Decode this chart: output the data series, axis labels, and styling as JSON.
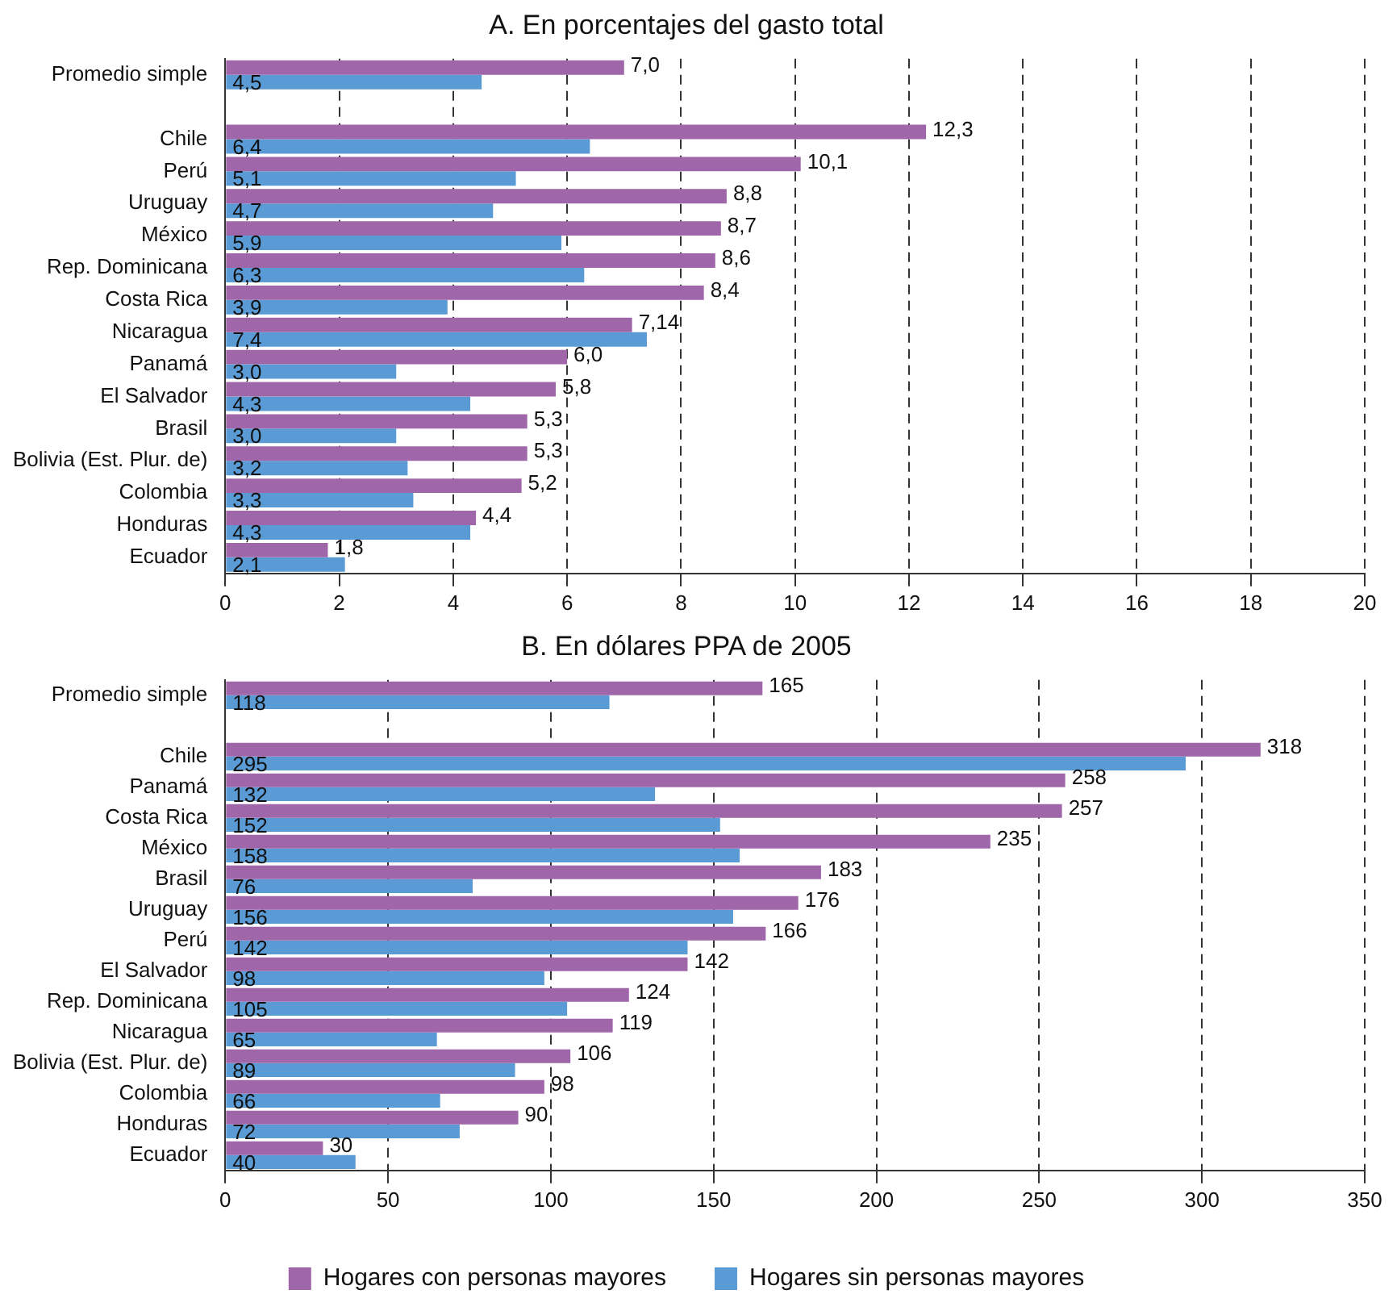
{
  "chart_data": [
    {
      "type": "bar",
      "orientation": "horizontal",
      "title": "A. En porcentajes del gasto total",
      "categories": [
        "Promedio simple",
        null,
        "Chile",
        "Perú",
        "Uruguay",
        "México",
        "Rep. Dominicana",
        "Costa Rica",
        "Nicaragua",
        "Panamá",
        "El Salvador",
        "Brasil",
        "Bolivia (Est. Plur. de)",
        "Colombia",
        "Honduras",
        "Ecuador"
      ],
      "series": [
        {
          "color": "#a066aa",
          "values": [
            7.0,
            null,
            12.3,
            10.1,
            8.8,
            8.7,
            8.6,
            8.4,
            7.14,
            6.0,
            5.8,
            5.3,
            5.3,
            5.2,
            4.4,
            1.8
          ],
          "value_labels": [
            "7,0",
            null,
            "12,3",
            "10,1",
            "8,8",
            "8,7",
            "8,6",
            "8,4",
            "7,14",
            "6,0",
            "5,8",
            "5,3",
            "5,3",
            "5,2",
            "4,4",
            "1,8"
          ]
        },
        {
          "color": "#5b9bd5",
          "values": [
            4.5,
            null,
            6.4,
            5.1,
            4.7,
            5.9,
            6.3,
            3.9,
            7.4,
            3.0,
            4.3,
            3.0,
            3.2,
            3.3,
            4.3,
            2.1
          ],
          "value_labels": [
            "4,5",
            null,
            "6,4",
            "5,1",
            "4,7",
            "5,9",
            "6,3",
            "3,9",
            "7,4",
            "3,0",
            "4,3",
            "3,0",
            "3,2",
            "3,3",
            "4,3",
            "2,1"
          ]
        }
      ],
      "xlim": [
        0,
        20
      ],
      "xticks": [
        0,
        2,
        4,
        6,
        8,
        10,
        12,
        14,
        16,
        18,
        20
      ],
      "grid": "x",
      "legend": false
    },
    {
      "type": "bar",
      "orientation": "horizontal",
      "title": "B. En dólares PPA de 2005",
      "categories": [
        "Promedio simple",
        null,
        "Chile",
        "Panamá",
        "Costa Rica",
        "México",
        "Brasil",
        "Uruguay",
        "Perú",
        "El Salvador",
        "Rep. Dominicana",
        "Nicaragua",
        "Bolivia (Est. Plur. de)",
        "Colombia",
        "Honduras",
        "Ecuador"
      ],
      "series": [
        {
          "name": "Hogares con personas mayores",
          "color": "#a066aa",
          "values": [
            165,
            null,
            318,
            258,
            257,
            235,
            183,
            176,
            166,
            142,
            124,
            119,
            106,
            98,
            90,
            30
          ]
        },
        {
          "name": "Hogares sin personas mayores",
          "color": "#5b9bd5",
          "values": [
            118,
            null,
            295,
            132,
            152,
            158,
            76,
            156,
            142,
            98,
            105,
            65,
            89,
            66,
            72,
            40
          ]
        }
      ],
      "data_labels": true,
      "xlim": [
        0,
        350
      ],
      "xticks": [
        0,
        50,
        100,
        150,
        200,
        250,
        300,
        350
      ],
      "grid": "x",
      "legend": "bottom"
    }
  ]
}
